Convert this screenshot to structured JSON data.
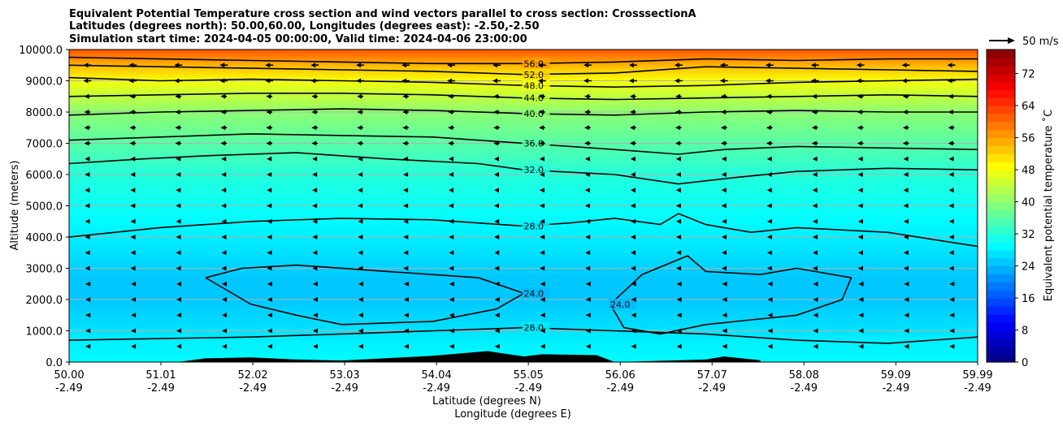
{
  "chart_data": {
    "type": "contour-cross-section",
    "title_lines": [
      "Equivalent Potential Temperature cross section and wind vectors parallel to cross section: CrosssectionA",
      "Latitudes (degrees north): 50.00,60.00, Longitudes (degrees east): -2.50,-2.50",
      "Simulation start time: 2024-04-05 00:00:00, Valid time: 2024-04-06 23:00:00"
    ],
    "ylabel": "Altitude (meters)",
    "xlabel_lines": [
      "Latitude (degrees N)",
      "Longitude (degrees E)"
    ],
    "xlim": [
      50.0,
      59.99
    ],
    "ylim": [
      0,
      10000
    ],
    "x_ticks": [
      {
        "lat": "50.00",
        "lon": "-2.49",
        "value": 50.0
      },
      {
        "lat": "51.01",
        "lon": "-2.49",
        "value": 51.01
      },
      {
        "lat": "52.02",
        "lon": "-2.49",
        "value": 52.02
      },
      {
        "lat": "53.03",
        "lon": "-2.49",
        "value": 53.03
      },
      {
        "lat": "54.04",
        "lon": "-2.49",
        "value": 54.04
      },
      {
        "lat": "55.05",
        "lon": "-2.49",
        "value": 55.05
      },
      {
        "lat": "56.06",
        "lon": "-2.49",
        "value": 56.06
      },
      {
        "lat": "57.07",
        "lon": "-2.49",
        "value": 57.07
      },
      {
        "lat": "58.08",
        "lon": "-2.49",
        "value": 58.08
      },
      {
        "lat": "59.09",
        "lon": "-2.49",
        "value": 59.09
      },
      {
        "lat": "59.99",
        "lon": "-2.49",
        "value": 59.99
      }
    ],
    "y_ticks": [
      {
        "label": "0.0",
        "value": 0
      },
      {
        "label": "1000.0",
        "value": 1000
      },
      {
        "label": "2000.0",
        "value": 2000
      },
      {
        "label": "3000.0",
        "value": 3000
      },
      {
        "label": "4000.0",
        "value": 4000
      },
      {
        "label": "5000.0",
        "value": 5000
      },
      {
        "label": "6000.0",
        "value": 6000
      },
      {
        "label": "7000.0",
        "value": 7000
      },
      {
        "label": "8000.0",
        "value": 8000
      },
      {
        "label": "9000.0",
        "value": 9000
      },
      {
        "label": "10000.0",
        "value": 10000
      }
    ],
    "colorbar": {
      "label": "Equivalent potential temperature $^\\circ$C",
      "label_text": "Equivalent potential temperature ˚C",
      "min": 0,
      "max": 78,
      "step": 2,
      "ticks": [
        0,
        8,
        16,
        24,
        32,
        40,
        48,
        56,
        64,
        72
      ]
    },
    "quiver_key": {
      "label": "50 m/s"
    },
    "theta_e_profile": [
      {
        "alt": 0,
        "value": 29
      },
      {
        "alt": 700,
        "value": 28
      },
      {
        "alt": 1000,
        "value": 27
      },
      {
        "alt": 2000,
        "value": 25
      },
      {
        "alt": 2700,
        "value": 25
      },
      {
        "alt": 3500,
        "value": 27
      },
      {
        "alt": 4500,
        "value": 29
      },
      {
        "alt": 5500,
        "value": 31
      },
      {
        "alt": 6000,
        "value": 32
      },
      {
        "alt": 7000,
        "value": 36
      },
      {
        "alt": 8000,
        "value": 40
      },
      {
        "alt": 8500,
        "value": 44
      },
      {
        "alt": 9000,
        "value": 48
      },
      {
        "alt": 9400,
        "value": 53
      },
      {
        "alt": 10000,
        "value": 62
      }
    ],
    "contours": [
      {
        "level": 32,
        "label": "32.0",
        "points": [
          [
            50.0,
            6350
          ],
          [
            50.8,
            6500
          ],
          [
            51.5,
            6600
          ],
          [
            52.5,
            6700
          ],
          [
            53.5,
            6500
          ],
          [
            54.5,
            6350
          ],
          [
            55.0,
            6150
          ],
          [
            56.0,
            6000
          ],
          [
            56.7,
            5700
          ],
          [
            57.3,
            5900
          ],
          [
            58.0,
            6100
          ],
          [
            59.0,
            6200
          ],
          [
            59.99,
            6150
          ]
        ]
      },
      {
        "level": 36,
        "label": "36.0",
        "points": [
          [
            50.0,
            7100
          ],
          [
            51.0,
            7200
          ],
          [
            52.0,
            7300
          ],
          [
            53.0,
            7250
          ],
          [
            54.0,
            7200
          ],
          [
            55.0,
            7000
          ],
          [
            56.0,
            6800
          ],
          [
            56.7,
            6650
          ],
          [
            57.2,
            6800
          ],
          [
            58.0,
            6900
          ],
          [
            59.0,
            6850
          ],
          [
            59.99,
            6800
          ]
        ]
      },
      {
        "level": 40,
        "label": "40.0",
        "points": [
          [
            50.0,
            7900
          ],
          [
            51.0,
            8000
          ],
          [
            52.0,
            8050
          ],
          [
            53.0,
            8100
          ],
          [
            54.0,
            8050
          ],
          [
            55.0,
            7950
          ],
          [
            56.0,
            7900
          ],
          [
            57.0,
            8000
          ],
          [
            58.0,
            8050
          ],
          [
            59.0,
            8000
          ],
          [
            59.99,
            8000
          ]
        ]
      },
      {
        "level": 44,
        "label": "44.0",
        "points": [
          [
            50.0,
            8500
          ],
          [
            51.0,
            8550
          ],
          [
            52.0,
            8600
          ],
          [
            53.0,
            8600
          ],
          [
            54.0,
            8550
          ],
          [
            55.0,
            8450
          ],
          [
            56.0,
            8400
          ],
          [
            57.0,
            8450
          ],
          [
            58.0,
            8500
          ],
          [
            59.0,
            8550
          ],
          [
            59.99,
            8500
          ]
        ]
      },
      {
        "level": 48,
        "label": "48.0",
        "points": [
          [
            50.0,
            9100
          ],
          [
            51.0,
            9000
          ],
          [
            52.0,
            9050
          ],
          [
            53.0,
            9000
          ],
          [
            54.0,
            8950
          ],
          [
            55.0,
            8850
          ],
          [
            56.0,
            8800
          ],
          [
            57.0,
            8850
          ],
          [
            58.0,
            8950
          ],
          [
            59.0,
            9000
          ],
          [
            59.99,
            9050
          ]
        ]
      },
      {
        "level": 52,
        "label": "52.0",
        "points": [
          [
            50.0,
            9500
          ],
          [
            51.0,
            9450
          ],
          [
            52.0,
            9400
          ],
          [
            53.0,
            9350
          ],
          [
            54.0,
            9300
          ],
          [
            55.0,
            9200
          ],
          [
            56.0,
            9250
          ],
          [
            57.0,
            9450
          ],
          [
            58.0,
            9400
          ],
          [
            59.0,
            9350
          ],
          [
            59.99,
            9300
          ]
        ]
      },
      {
        "level": 56,
        "label": "56.0",
        "points": [
          [
            50.0,
            9750
          ],
          [
            51.0,
            9700
          ],
          [
            52.0,
            9650
          ],
          [
            53.0,
            9600
          ],
          [
            54.0,
            9550
          ],
          [
            55.0,
            9550
          ],
          [
            56.0,
            9600
          ],
          [
            57.0,
            9700
          ],
          [
            58.0,
            9650
          ],
          [
            59.0,
            9700
          ],
          [
            59.99,
            9700
          ]
        ]
      },
      {
        "level": 28,
        "label": "28.0",
        "points": [
          [
            50.0,
            4000
          ],
          [
            51.0,
            4300
          ],
          [
            52.0,
            4500
          ],
          [
            53.0,
            4600
          ],
          [
            54.0,
            4550
          ],
          [
            55.0,
            4350
          ],
          [
            55.5,
            4450
          ],
          [
            56.0,
            4600
          ],
          [
            56.5,
            4400
          ],
          [
            56.7,
            4750
          ],
          [
            57.0,
            4400
          ],
          [
            57.5,
            4150
          ],
          [
            58.0,
            4300
          ],
          [
            59.0,
            4150
          ],
          [
            59.99,
            3700
          ]
        ]
      },
      {
        "level": 24,
        "label": "24.0",
        "points": [
          [
            51.5,
            2700
          ],
          [
            51.9,
            3000
          ],
          [
            52.5,
            3100
          ],
          [
            53.5,
            2900
          ],
          [
            54.5,
            2700
          ],
          [
            55.0,
            2200
          ],
          [
            54.7,
            1700
          ],
          [
            54.0,
            1300
          ],
          [
            53.0,
            1200
          ],
          [
            52.5,
            1500
          ],
          [
            52.0,
            1850
          ],
          [
            51.5,
            2700
          ]
        ]
      },
      {
        "level": 24,
        "label": "24.0",
        "points": [
          [
            55.95,
            1850
          ],
          [
            56.3,
            2800
          ],
          [
            56.8,
            3400
          ],
          [
            57.0,
            2900
          ],
          [
            57.6,
            2800
          ],
          [
            58.0,
            3000
          ],
          [
            58.6,
            2700
          ],
          [
            58.5,
            2000
          ],
          [
            58.0,
            1500
          ],
          [
            57.5,
            1350
          ],
          [
            57.0,
            1200
          ],
          [
            56.5,
            900
          ],
          [
            56.1,
            1100
          ],
          [
            55.95,
            1850
          ]
        ]
      },
      {
        "level": 28,
        "label": "28.0",
        "points": [
          [
            50.0,
            700
          ],
          [
            51.0,
            750
          ],
          [
            52.0,
            800
          ],
          [
            53.0,
            900
          ],
          [
            54.0,
            1000
          ],
          [
            55.0,
            1100
          ],
          [
            56.0,
            1000
          ],
          [
            57.0,
            900
          ],
          [
            58.0,
            700
          ],
          [
            59.0,
            600
          ],
          [
            59.99,
            800
          ]
        ]
      }
    ],
    "surface_terrain": [
      [
        51.2,
        0
      ],
      [
        51.5,
        120
      ],
      [
        52.0,
        150
      ],
      [
        52.5,
        80
      ],
      [
        53.0,
        50
      ],
      [
        54.0,
        200
      ],
      [
        54.6,
        350
      ],
      [
        55.0,
        180
      ],
      [
        55.2,
        250
      ],
      [
        55.8,
        220
      ],
      [
        56.0,
        0
      ],
      [
        57.0,
        80
      ],
      [
        57.2,
        180
      ],
      [
        57.6,
        60
      ]
    ],
    "wind_u": [
      {
        "alt_max": 9000,
        "u": -18
      },
      {
        "alt_max": 7000,
        "u": -14
      },
      {
        "alt_max": 5000,
        "u": -11
      },
      {
        "alt_max": 3000,
        "u": -10
      },
      {
        "alt_max": 0,
        "u": -8
      }
    ]
  }
}
